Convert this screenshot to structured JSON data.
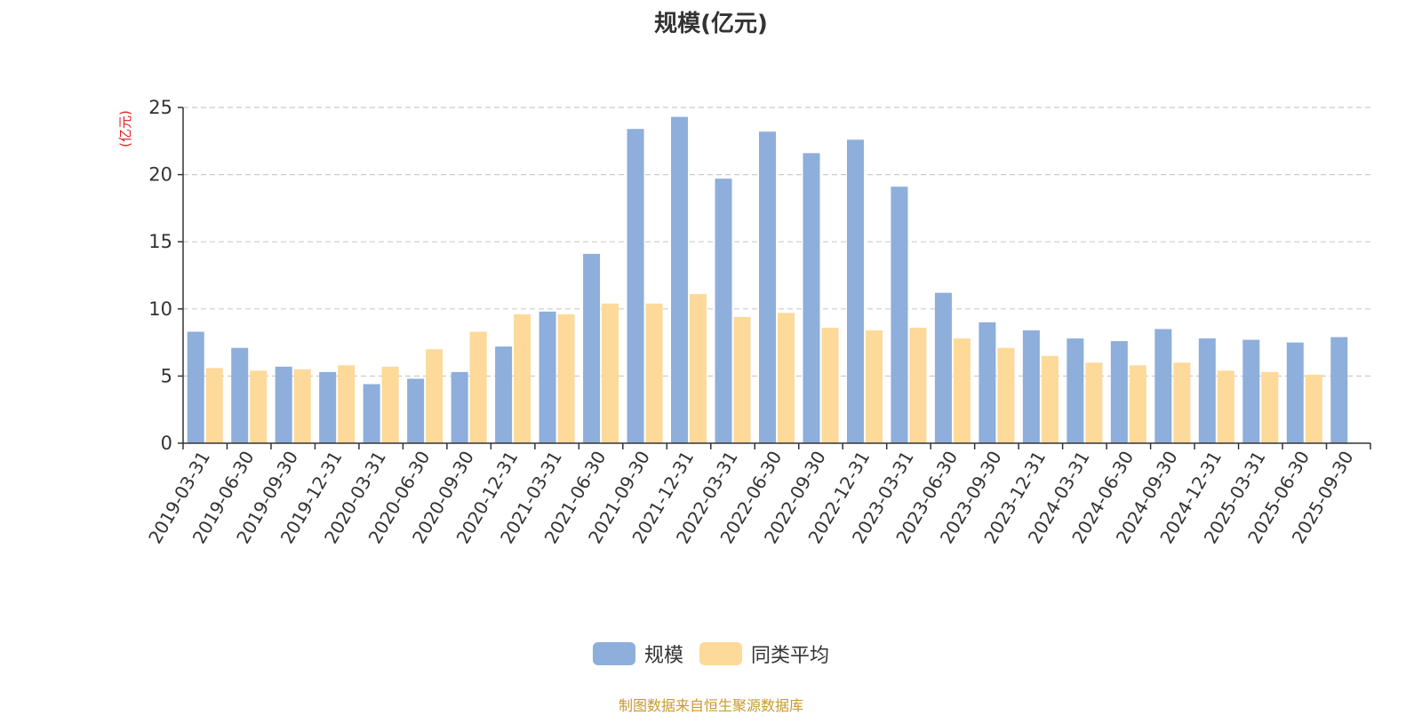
{
  "chart_data": {
    "type": "bar",
    "title": "规模(亿元)",
    "ylabel": "(亿元)",
    "xlabel": "",
    "ylim": [
      0,
      25
    ],
    "yticks": [
      0,
      5,
      10,
      15,
      20,
      25
    ],
    "grid": "horizontal-dashed",
    "legend_position": "bottom",
    "categories": [
      "2019-03-31",
      "2019-06-30",
      "2019-09-30",
      "2019-12-31",
      "2020-03-31",
      "2020-06-30",
      "2020-09-30",
      "2020-12-31",
      "2021-03-31",
      "2021-06-30",
      "2021-09-30",
      "2021-12-31",
      "2022-03-31",
      "2022-06-30",
      "2022-09-30",
      "2022-12-31",
      "2023-03-31",
      "2023-06-30",
      "2023-09-30",
      "2023-12-31",
      "2024-03-31",
      "2024-06-30",
      "2024-09-30",
      "2024-12-31",
      "2025-03-31",
      "2025-06-30",
      "2025-09-30"
    ],
    "series": [
      {
        "name": "规模",
        "color": "#8eaedb",
        "values": [
          8.3,
          7.1,
          5.7,
          5.3,
          4.4,
          4.8,
          5.3,
          7.2,
          9.8,
          14.1,
          23.4,
          24.3,
          19.7,
          23.2,
          21.6,
          22.6,
          19.1,
          11.2,
          9.0,
          8.4,
          7.8,
          7.6,
          8.5,
          7.8,
          7.7,
          7.5,
          7.9
        ]
      },
      {
        "name": "同类平均",
        "color": "#fdd99a",
        "values": [
          5.6,
          5.4,
          5.5,
          5.8,
          5.7,
          7.0,
          8.3,
          9.6,
          9.6,
          10.4,
          10.4,
          11.1,
          9.4,
          9.7,
          8.6,
          8.4,
          8.6,
          7.8,
          7.1,
          6.5,
          6.0,
          5.8,
          6.0,
          5.4,
          5.3,
          5.1,
          null
        ]
      }
    ]
  },
  "legend": {
    "items": [
      {
        "label": "规模",
        "color": "#8eaedb"
      },
      {
        "label": "同类平均",
        "color": "#fdd99a"
      }
    ]
  },
  "source_note": "制图数据来自恒生聚源数据库"
}
